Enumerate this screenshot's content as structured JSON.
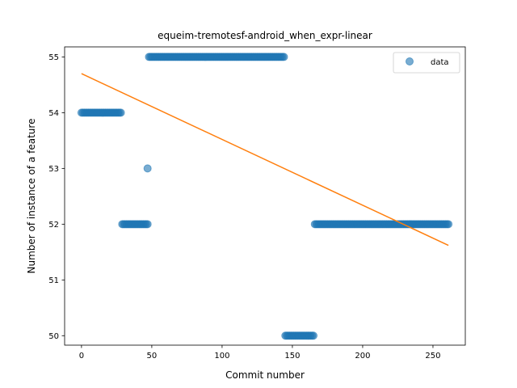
{
  "chart_data": {
    "type": "scatter",
    "title": "equeim-tremotesf-android_when_expr-linear",
    "xlabel": "Commit number",
    "ylabel": "Number of instance of a feature",
    "xlim": [
      -12,
      273
    ],
    "ylim": [
      49.83,
      55.18
    ],
    "xticks": [
      0,
      50,
      100,
      150,
      200,
      250
    ],
    "yticks": [
      50,
      51,
      52,
      53,
      54,
      55
    ],
    "xtick_labels": [
      "0",
      "50",
      "100",
      "150",
      "200",
      "250"
    ],
    "ytick_labels": [
      "50",
      "51",
      "52",
      "53",
      "54",
      "55"
    ],
    "grid": false,
    "legend": {
      "placement": "top-right",
      "entries": [
        "data"
      ]
    },
    "series": [
      {
        "name": "data",
        "kind": "scatter",
        "color": "#1f77b4",
        "segments": [
          {
            "x_start": 0,
            "x_end": 28,
            "y": 54
          },
          {
            "x_start": 29,
            "x_end": 47,
            "y": 52
          },
          {
            "x_start": 47,
            "x_end": 47,
            "y": 53
          },
          {
            "x_start": 48,
            "x_end": 144,
            "y": 55
          },
          {
            "x_start": 145,
            "x_end": 165,
            "y": 50
          },
          {
            "x_start": 166,
            "x_end": 261,
            "y": 52
          }
        ]
      },
      {
        "name": "",
        "kind": "line",
        "color": "#ff7f0e",
        "x": [
          0,
          261
        ],
        "y": [
          54.7,
          51.62
        ]
      }
    ]
  }
}
